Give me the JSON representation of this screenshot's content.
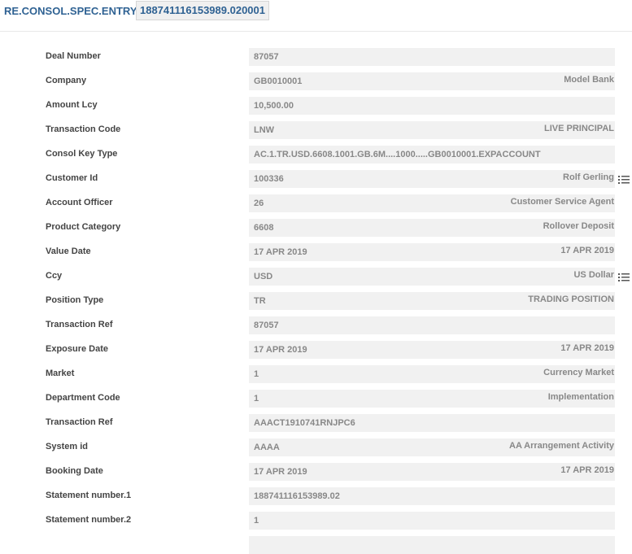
{
  "header": {
    "title": "RE.CONSOL.SPEC.ENTRY",
    "record_id": "188741116153989.020001"
  },
  "rows": [
    {
      "label": "Deal Number",
      "value": "87057",
      "desc": ""
    },
    {
      "label": "Company",
      "value": "GB0010001",
      "desc": "Model Bank"
    },
    {
      "label": "Amount Lcy",
      "value": "10,500.00",
      "desc": ""
    },
    {
      "label": "Transaction Code",
      "value": "LNW",
      "desc": "LIVE PRINCIPAL"
    },
    {
      "label": "Consol Key Type",
      "value": "AC.1.TR.USD.6608.1001.GB.6M....1000.....GB0010001.EXPACCOUNT",
      "desc": ""
    },
    {
      "label": "Customer Id",
      "value": "100336",
      "desc": "Rolf Gerling",
      "icon": "list-icon"
    },
    {
      "label": "Account Officer",
      "value": "26",
      "desc": "Customer Service Agent"
    },
    {
      "label": "Product Category",
      "value": "6608",
      "desc": "Rollover Deposit"
    },
    {
      "label": "Value Date",
      "value": "17 APR 2019",
      "desc": "17 APR 2019"
    },
    {
      "label": "Ccy",
      "value": "USD",
      "desc": "US Dollar",
      "icon": "list-icon"
    },
    {
      "label": "Position Type",
      "value": "TR",
      "desc": "TRADING POSITION"
    },
    {
      "label": "Transaction Ref",
      "value": "87057",
      "desc": ""
    },
    {
      "label": "Exposure Date",
      "value": "17 APR 2019",
      "desc": "17 APR 2019"
    },
    {
      "label": "Market",
      "value": "1",
      "desc": "Currency Market"
    },
    {
      "label": "Department Code",
      "value": "1",
      "desc": "Implementation"
    },
    {
      "label": "Transaction Ref",
      "value": "AAACT1910741RNJPC6",
      "desc": ""
    },
    {
      "label": "System id",
      "value": "AAAA",
      "desc": "AA Arrangement Activity"
    },
    {
      "label": "Booking Date",
      "value": "17 APR 2019",
      "desc": "17 APR 2019"
    },
    {
      "label": "Statement number.1",
      "value": "188741116153989.02",
      "desc": ""
    },
    {
      "label": "Statement number.2",
      "value": "1",
      "desc": ""
    },
    {
      "label": "",
      "value": "",
      "desc": ""
    }
  ]
}
